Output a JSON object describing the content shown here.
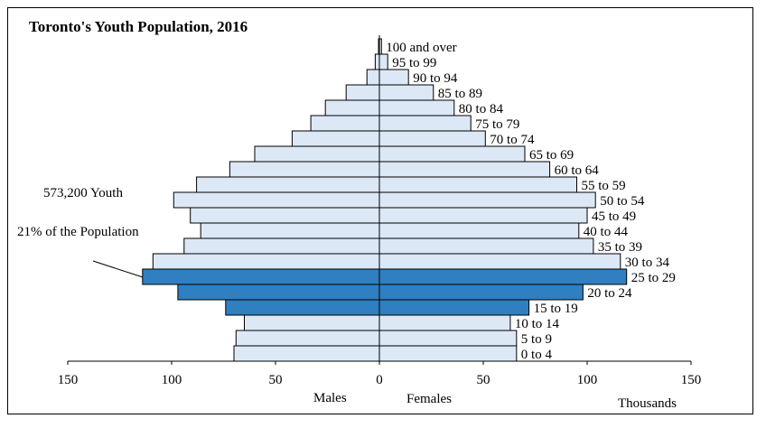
{
  "chart_data": {
    "type": "bar",
    "orientation": "population-pyramid",
    "title": "Toronto's Youth Population, 2016",
    "categories": [
      "0 to 4",
      "5 to 9",
      "10 to 14",
      "15 to 19",
      "20 to 24",
      "25 to 29",
      "30 to 34",
      "35 to 39",
      "40 to 44",
      "45 to 49",
      "50 to 54",
      "55 to 59",
      "60 to 64",
      "65 to 69",
      "70 to 74",
      "75 to 79",
      "80 to 84",
      "85 to 89",
      "90 to 94",
      "95 to 99",
      "100 and over"
    ],
    "series": [
      {
        "name": "Males",
        "values": [
          70,
          69,
          65,
          74,
          97,
          114,
          109,
          94,
          86,
          91,
          99,
          88,
          72,
          60,
          42,
          33,
          26,
          16,
          6,
          2,
          0.4
        ]
      },
      {
        "name": "Females",
        "values": [
          66,
          66,
          63,
          72,
          98,
          119,
          116,
          103,
          96,
          100,
          104,
          95,
          82,
          70,
          51,
          44,
          36,
          26,
          14,
          4,
          1
        ]
      }
    ],
    "highlighted_categories": [
      "15 to 19",
      "20 to 24",
      "25 to 29"
    ],
    "xlim": [
      -150,
      150
    ],
    "xticks": [
      -150,
      -100,
      -50,
      0,
      50,
      100,
      150
    ],
    "xtick_labels": [
      "150",
      "100",
      "50",
      "0",
      "50",
      "100",
      "150"
    ],
    "xlabel_left": "Males",
    "xlabel_right": "Females",
    "unit_label": "Thousands",
    "annotations": [
      "573,200 Youth",
      "21% of the Population"
    ],
    "colors": {
      "default_fill": "#dde8f6",
      "highlight_fill": "#2f7fc1",
      "stroke": "#000000"
    },
    "grid": false
  }
}
